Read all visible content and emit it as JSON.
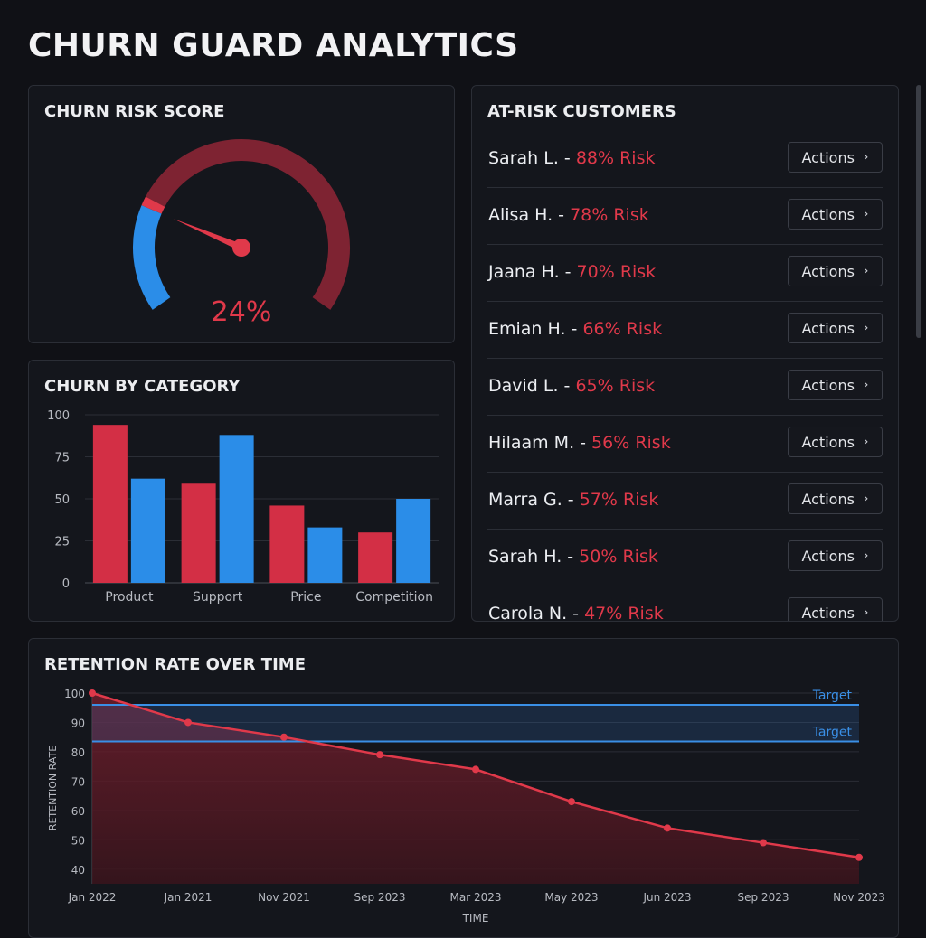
{
  "app": {
    "title": "CHURN GUARD ANALYTICS"
  },
  "colors": {
    "risk": "#e0394a",
    "bar_red": "#d32f45",
    "bar_blue": "#2b8de8",
    "background": "#101116"
  },
  "gauge": {
    "title": "CHURN RISK SCORE",
    "value_label": "24%",
    "value": 24
  },
  "category_chart": {
    "title": "CHURN BY CATEGORY",
    "chart_data": {
      "type": "bar",
      "categories": [
        "Product",
        "Support",
        "Price",
        "Competition"
      ],
      "series": [
        {
          "values": [
            94,
            59,
            46,
            30
          ]
        },
        {
          "values": [
            62,
            88,
            33,
            50
          ]
        }
      ],
      "ylim": [
        0,
        100
      ],
      "yticks": [
        "0",
        "25",
        "50",
        "75",
        "100"
      ],
      "grid": true
    }
  },
  "customers": {
    "title": "AT-RISK CUSTOMERS",
    "action_label": "Actions",
    "items": [
      {
        "name": "Sarah L. - ",
        "risk": "88% Risk"
      },
      {
        "name": "Alisa H. - ",
        "risk": "78% Risk"
      },
      {
        "name": "Jaana H. - ",
        "risk": "70% Risk"
      },
      {
        "name": "Emian H. - ",
        "risk": "66% Risk"
      },
      {
        "name": "David L. - ",
        "risk": "65% Risk"
      },
      {
        "name": "Hilaam M. - ",
        "risk": "56% Risk"
      },
      {
        "name": "Marra G. - ",
        "risk": "57% Risk"
      },
      {
        "name": "Sarah H. - ",
        "risk": "50% Risk"
      },
      {
        "name": "Carola N. - ",
        "risk": "47% Risk"
      }
    ]
  },
  "retention_chart": {
    "title": "RETENTION RATE OVER TIME",
    "chart_data": {
      "type": "area",
      "x": [
        "Jan 2022",
        "Jan 2021",
        "Nov 2021",
        "Sep 2023",
        "Mar 2023",
        "May 2023",
        "Jun 2023",
        "Sep 2023",
        "Nov 2023"
      ],
      "series": [
        {
          "values": [
            100,
            90,
            85,
            79,
            74,
            63,
            54,
            49,
            44
          ]
        }
      ],
      "ylim": [
        35,
        100
      ],
      "yticks": [
        "40",
        "50",
        "60",
        "70",
        "80",
        "90",
        "100"
      ],
      "xlabel": "TIME",
      "ylabel": "RETENTION RATE",
      "target_band": [
        83.5,
        96
      ],
      "target_labels": [
        "Target",
        "Target"
      ],
      "grid": true
    }
  }
}
